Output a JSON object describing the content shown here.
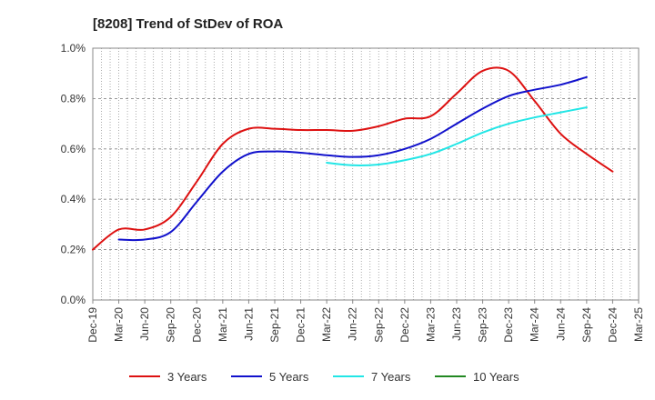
{
  "chart_data": {
    "type": "line",
    "title": "[8208]  Trend of StDev of ROA",
    "xlabel": "",
    "ylabel": "",
    "x_ticks": [
      "Dec-19",
      "Mar-20",
      "Jun-20",
      "Sep-20",
      "Dec-20",
      "Mar-21",
      "Jun-21",
      "Sep-21",
      "Dec-21",
      "Mar-22",
      "Jun-22",
      "Sep-22",
      "Dec-22",
      "Mar-23",
      "Jun-23",
      "Sep-23",
      "Dec-23",
      "Mar-24",
      "Jun-24",
      "Sep-24",
      "Dec-24",
      "Mar-25"
    ],
    "y_ticks": [
      "0.0%",
      "0.2%",
      "0.4%",
      "0.6%",
      "0.8%",
      "1.0%"
    ],
    "ylim": [
      0,
      1.0
    ],
    "grid": true,
    "legend_position": "bottom",
    "series": [
      {
        "name": "3 Years",
        "color": "#dd1111",
        "start_index": 0,
        "values": [
          0.2,
          0.28,
          0.28,
          0.33,
          0.47,
          0.62,
          0.68,
          0.68,
          0.675,
          0.675,
          0.672,
          0.69,
          0.72,
          0.73,
          0.82,
          0.91,
          0.91,
          0.79,
          0.66,
          0.58,
          0.51
        ]
      },
      {
        "name": "5 Years",
        "color": "#1111cc",
        "start_index": 1,
        "values": [
          0.24,
          0.24,
          0.27,
          0.39,
          0.51,
          0.58,
          0.59,
          0.585,
          0.575,
          0.568,
          0.575,
          0.6,
          0.64,
          0.7,
          0.76,
          0.81,
          0.835,
          0.855,
          0.885
        ]
      },
      {
        "name": "7 Years",
        "color": "#22e6e6",
        "start_index": 9,
        "values": [
          0.545,
          0.535,
          0.538,
          0.555,
          0.58,
          0.62,
          0.665,
          0.7,
          0.725,
          0.745,
          0.765
        ]
      },
      {
        "name": "10 Years",
        "color": "#228822",
        "start_index": 0,
        "values": []
      }
    ]
  }
}
